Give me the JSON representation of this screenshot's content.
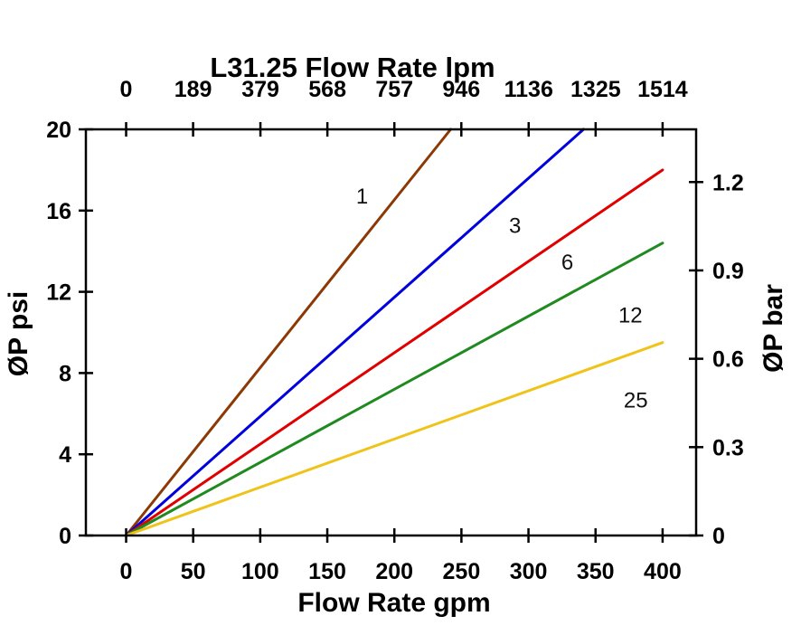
{
  "chart_data": {
    "type": "line",
    "title": "L31.25 Flow Rate lpm",
    "xlabel": "Flow Rate gpm",
    "ylabel_left": "ØP psi",
    "ylabel_right": "ØP bar",
    "xlim": [
      -30,
      425
    ],
    "ylim": [
      0,
      20
    ],
    "grid": false,
    "legend": "inline labels on curves",
    "axis_color": "#000000",
    "background_color": "#ffffff",
    "x_ticks_gpm": [
      0,
      50,
      100,
      150,
      200,
      250,
      300,
      350,
      400
    ],
    "top_ticks_lpm": [
      0,
      189,
      379,
      568,
      757,
      946,
      1136,
      1325,
      1514
    ],
    "left_ticks_psi": [
      0,
      4,
      8,
      12,
      16,
      20
    ],
    "right_ticks_bar": [
      "0",
      "0.3",
      "0.6",
      "0.9",
      "1.2"
    ],
    "lpm_per_gpm": 3.785,
    "psi_per_bar": 14.504,
    "series": [
      {
        "name": "1",
        "color": "#8b3a05",
        "points": [
          [
            0,
            0
          ],
          [
            242,
            20
          ]
        ],
        "label_pos": [
          176,
          16.35
        ]
      },
      {
        "name": "3",
        "color": "#0000dd",
        "points": [
          [
            0,
            0
          ],
          [
            341,
            20
          ]
        ],
        "label_pos": [
          290,
          14.9
        ]
      },
      {
        "name": "6",
        "color": "#e00000",
        "points": [
          [
            0,
            0
          ],
          [
            400,
            18.0
          ]
        ],
        "label_pos": [
          329,
          13.1
        ]
      },
      {
        "name": "12",
        "color": "#1f8a1f",
        "points": [
          [
            0,
            0
          ],
          [
            400,
            14.4
          ]
        ],
        "label_pos": [
          376,
          10.5
        ]
      },
      {
        "name": "25",
        "color": "#efc319",
        "points": [
          [
            0,
            0
          ],
          [
            400,
            9.5
          ]
        ],
        "label_pos": [
          380,
          6.3
        ]
      }
    ]
  }
}
